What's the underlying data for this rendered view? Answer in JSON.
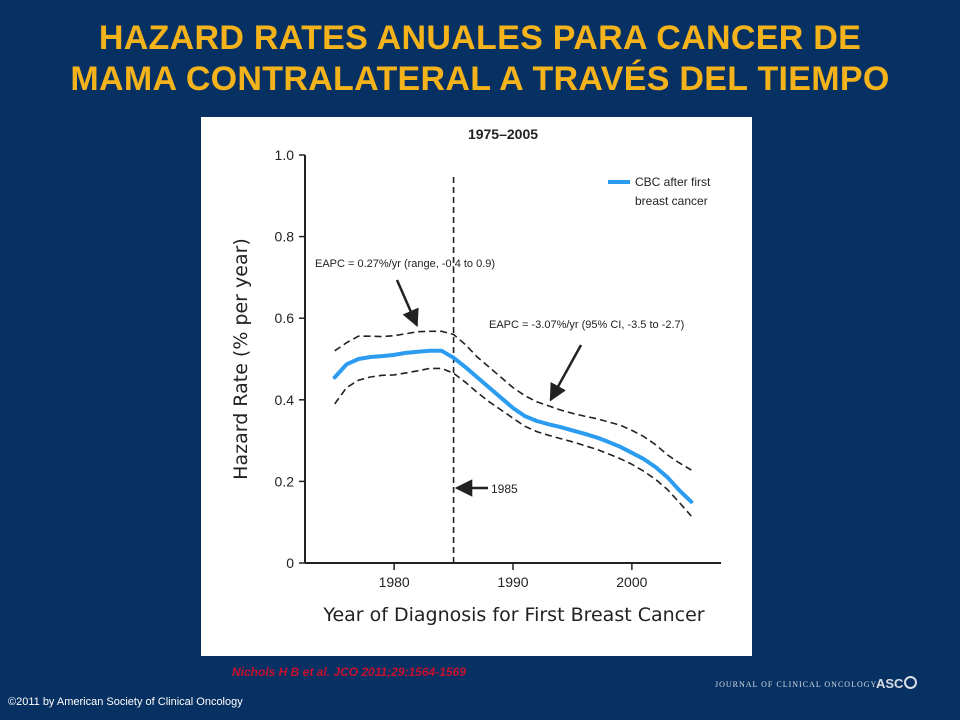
{
  "slide": {
    "title_line1": "HAZARD RATES ANUALES PARA CANCER DE",
    "title_line2": "MAMA CONTRALATERAL A TRAVÉS DEL TIEMPO",
    "citation": "Nichols H B et al. JCO 2011;29:1564-1569",
    "copyright": "©2011 by American Society of Clinical Oncology",
    "journal_logo": "JOURNAL OF CLINICAL ONCOLOGY",
    "asco_logo": "ASC"
  },
  "colors": {
    "background": "#073163",
    "title": "#f4b21b",
    "series": "#2b9cf0",
    "citation": "#c8102e"
  },
  "chart_data": {
    "type": "line",
    "title": "1975–2005",
    "xlabel": "Year of Diagnosis for First Breast Cancer",
    "ylabel": "Hazard Rate (% per year)",
    "xlim": [
      1972.5,
      2007.5
    ],
    "ylim": [
      0,
      1.0
    ],
    "x_ticks": [
      1980,
      1990,
      2000
    ],
    "y_ticks": [
      0,
      0.2,
      0.4,
      0.6,
      0.8,
      1.0
    ],
    "y_tick_labels": [
      "0",
      "0.2",
      "0.4",
      "0.6",
      "0.8",
      "1.0"
    ],
    "grid": false,
    "legend": {
      "position": "top-right",
      "label_line1": "CBC after first",
      "label_line2": "breast cancer"
    },
    "x": [
      1975,
      1976,
      1977,
      1978,
      1979,
      1980,
      1981,
      1982,
      1983,
      1984,
      1985,
      1986,
      1987,
      1988,
      1989,
      1990,
      1991,
      1992,
      1993,
      1994,
      1995,
      1996,
      1997,
      1998,
      1999,
      2000,
      2001,
      2002,
      2003,
      2004,
      2005
    ],
    "series": [
      {
        "name": "CBC after first breast cancer",
        "values": [
          0.455,
          0.487,
          0.5,
          0.505,
          0.507,
          0.51,
          0.515,
          0.518,
          0.52,
          0.52,
          0.503,
          0.48,
          0.455,
          0.43,
          0.405,
          0.38,
          0.36,
          0.348,
          0.34,
          0.333,
          0.325,
          0.317,
          0.308,
          0.297,
          0.285,
          0.27,
          0.255,
          0.235,
          0.21,
          0.178,
          0.15
        ],
        "role": "estimate"
      },
      {
        "values": [
          0.52,
          0.54,
          0.556,
          0.556,
          0.555,
          0.557,
          0.562,
          0.567,
          0.568,
          0.568,
          0.56,
          0.535,
          0.505,
          0.48,
          0.455,
          0.43,
          0.41,
          0.395,
          0.385,
          0.375,
          0.367,
          0.36,
          0.354,
          0.346,
          0.338,
          0.325,
          0.31,
          0.29,
          0.265,
          0.245,
          0.228
        ],
        "role": "upper"
      },
      {
        "values": [
          0.39,
          0.43,
          0.448,
          0.456,
          0.46,
          0.461,
          0.466,
          0.471,
          0.477,
          0.477,
          0.465,
          0.443,
          0.418,
          0.395,
          0.375,
          0.355,
          0.335,
          0.322,
          0.313,
          0.305,
          0.297,
          0.288,
          0.279,
          0.268,
          0.256,
          0.242,
          0.225,
          0.205,
          0.18,
          0.148,
          0.115
        ],
        "role": "lower"
      }
    ],
    "reference_line": {
      "x": 1985,
      "label": "1985"
    },
    "annotations": [
      {
        "text": "EAPC = 0.27%/yr (range, -0.4 to 0.9)",
        "arrow_to": [
          1982,
          0.57
        ]
      },
      {
        "text": "EAPC = -3.07%/yr (95% CI, -3.5 to -2.7)",
        "arrow_to": [
          1993,
          0.385
        ]
      }
    ]
  }
}
